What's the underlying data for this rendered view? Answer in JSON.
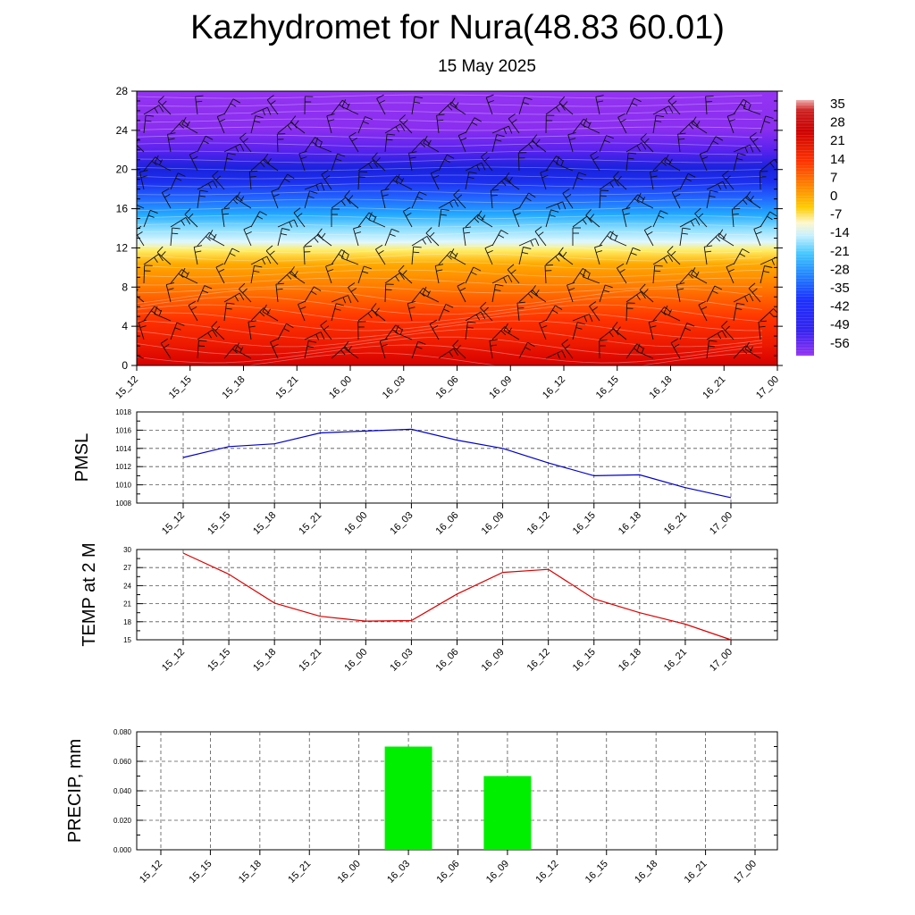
{
  "title": "Kazhydromet for Nura(48.83 60.01)",
  "subtitle": "15 May 2025",
  "colors": {
    "pmsl_line": "#0000cc",
    "temp_line": "#dd0000",
    "precip_bar": "#00ee00",
    "grid": "#555555"
  },
  "chart_data": [
    {
      "type": "heatmap",
      "name": "cross-section",
      "xlabel": "",
      "ylabel": "",
      "x_ticks": [
        "15_12",
        "15_15",
        "15_18",
        "15_21",
        "16_00",
        "16_03",
        "16_06",
        "16_09",
        "16_12",
        "16_15",
        "16_18",
        "16_21",
        "17_00"
      ],
      "y_ticks": [
        0,
        4,
        8,
        12,
        16,
        20,
        24,
        28
      ],
      "ylim": [
        0,
        28
      ],
      "colorbar_labels": [
        "35",
        "28",
        "21",
        "14",
        "7",
        "0",
        "-7",
        "-14",
        "-21",
        "-28",
        "-35",
        "-42",
        "-49",
        "-56"
      ],
      "colorbar_range": [
        -60,
        38
      ],
      "overlay": "wind barbs",
      "grid": false
    },
    {
      "type": "line",
      "name": "pmsl",
      "ylabel": "PMSL",
      "categories": [
        "15_12",
        "15_15",
        "15_18",
        "15_21",
        "16_00",
        "16_03",
        "16_06",
        "16_09",
        "16_12",
        "16_15",
        "16_18",
        "16_21",
        "17_00"
      ],
      "values": [
        1013.0,
        1014.2,
        1014.5,
        1015.7,
        1015.9,
        1016.1,
        1014.9,
        1014.0,
        1012.4,
        1011.0,
        1011.1,
        1009.7,
        1008.6
      ],
      "ylim": [
        1008,
        1018
      ],
      "y_ticks": [
        "1008",
        "1010",
        "1012",
        "1014",
        "1016",
        "1018"
      ],
      "grid": true
    },
    {
      "type": "line",
      "name": "temp",
      "ylabel": "TEMP at 2 M",
      "categories": [
        "15_12",
        "15_15",
        "15_18",
        "15_21",
        "16_00",
        "16_03",
        "16_06",
        "16_09",
        "16_12",
        "16_15",
        "16_18",
        "16_21",
        "17_00"
      ],
      "values": [
        29.4,
        25.9,
        21.1,
        18.9,
        18.1,
        18.2,
        22.6,
        26.2,
        26.7,
        21.8,
        19.5,
        17.6,
        15.0
      ],
      "ylim": [
        15,
        30
      ],
      "y_ticks": [
        "15",
        "18",
        "21",
        "24",
        "27",
        "30"
      ],
      "grid": true
    },
    {
      "type": "bar",
      "name": "precip",
      "ylabel": "PRECIP, mm",
      "categories": [
        "15_12",
        "15_15",
        "15_18",
        "15_21",
        "16_00",
        "16_03",
        "16_06",
        "16_09",
        "16_12",
        "16_15",
        "16_18",
        "16_21",
        "17_00"
      ],
      "values": [
        0,
        0,
        0,
        0,
        0,
        0.07,
        0,
        0.05,
        0,
        0,
        0,
        0,
        0
      ],
      "ylim": [
        0,
        0.08
      ],
      "y_ticks": [
        "0.000",
        "0.020",
        "0.040",
        "0.060",
        "0.080"
      ],
      "grid": true
    }
  ]
}
